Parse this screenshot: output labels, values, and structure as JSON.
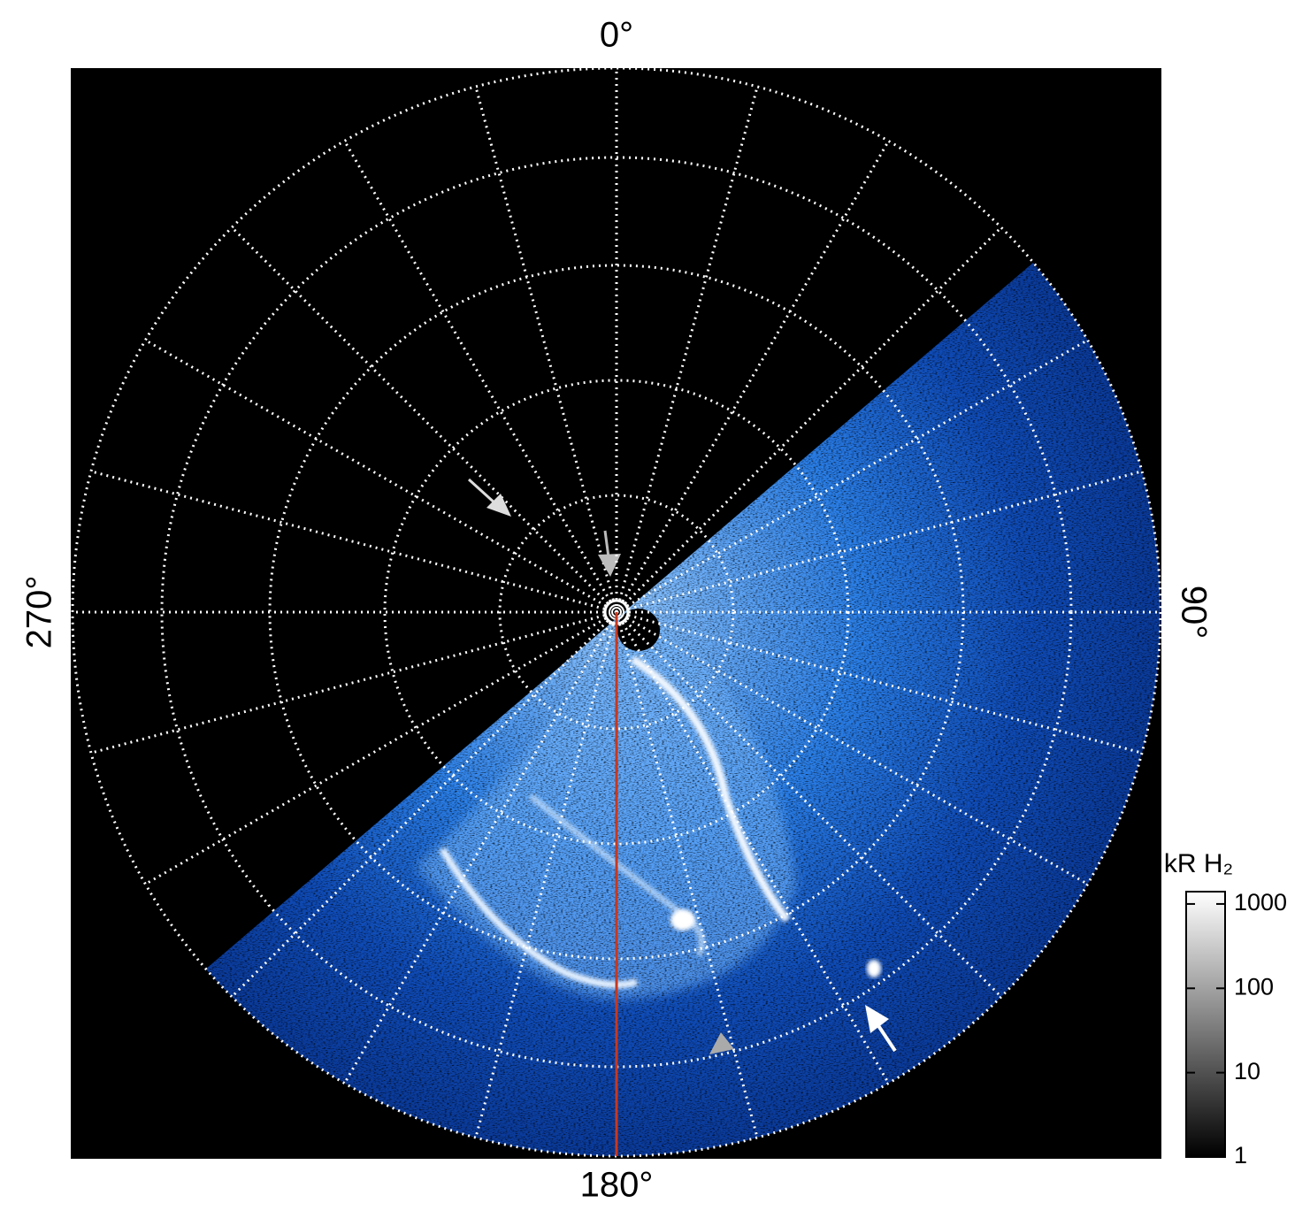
{
  "chart_data": {
    "type": "polar-image",
    "angle_ticks": [
      {
        "value": 0,
        "label": "0°"
      },
      {
        "value": 90,
        "label": "90°"
      },
      {
        "value": 180,
        "label": "180°"
      },
      {
        "value": 270,
        "label": "270°"
      }
    ],
    "grid": true,
    "meridian_line": {
      "value": 180,
      "color": "#c8381e"
    },
    "colorbar": {
      "title": "kR H₂",
      "scale": "log",
      "lim": [
        1,
        1400
      ],
      "ticks": [
        1,
        10,
        100,
        1000
      ],
      "colormap": [
        "#000000",
        "#ffffff"
      ]
    }
  }
}
